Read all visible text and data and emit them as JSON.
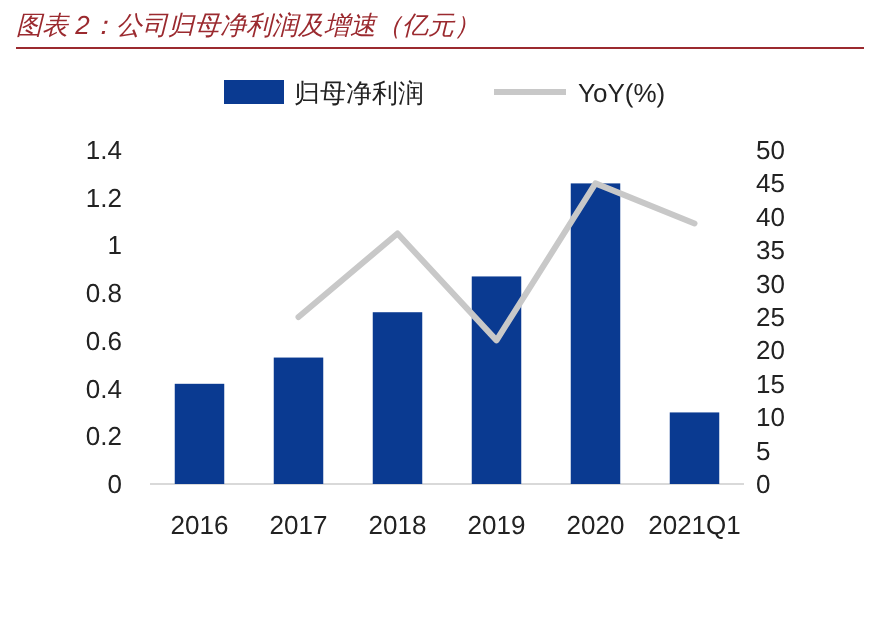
{
  "chart_data": {
    "type": "bar",
    "title": "图表 2：公司归母净利润及增速（亿元）",
    "categories": [
      "2016",
      "2017",
      "2018",
      "2019",
      "2020",
      "2021Q1"
    ],
    "series": [
      {
        "name": "归母净利润",
        "color": "#0a3a91",
        "values": [
          0.42,
          0.53,
          0.72,
          0.87,
          1.26,
          0.3
        ]
      },
      {
        "name": "YoY(%)",
        "type": "line",
        "axis": "y2",
        "color": "#c8c8c8",
        "values": [
          null,
          25,
          37.5,
          21.5,
          45,
          39
        ]
      }
    ],
    "ylim": [
      0,
      1.4
    ],
    "yticks": [
      0,
      0.2,
      0.4,
      0.6,
      0.8,
      1,
      1.2,
      1.4
    ],
    "y2lim": [
      0,
      50
    ],
    "y2ticks": [
      0,
      5,
      10,
      15,
      20,
      25,
      30,
      35,
      40,
      45,
      50
    ],
    "legend": "top"
  }
}
